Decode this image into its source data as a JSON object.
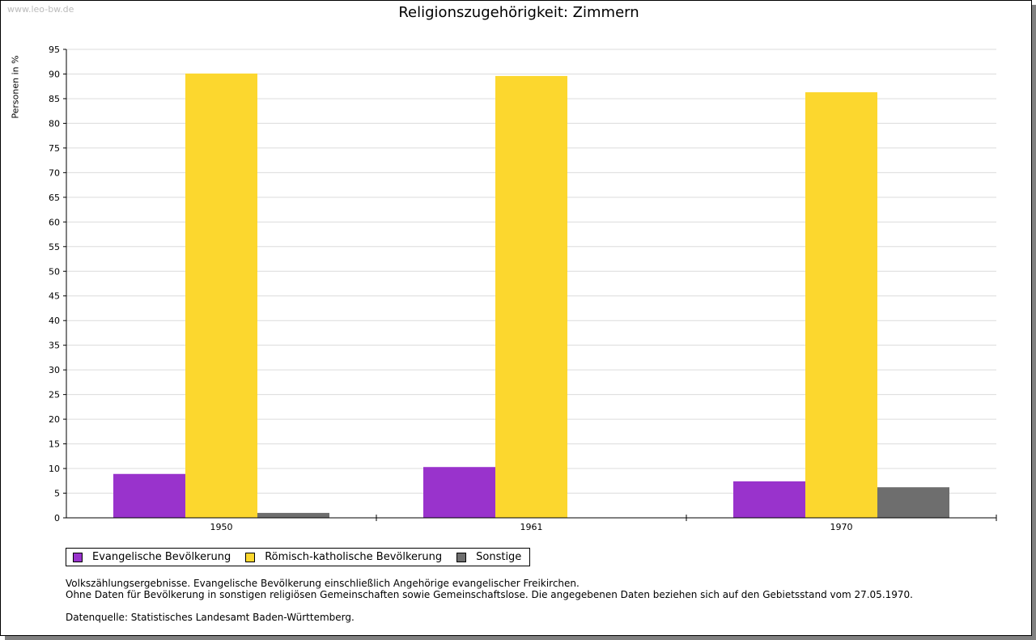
{
  "watermark": "www.leo-bw.de",
  "chart_data": {
    "type": "bar",
    "title": "Religionszugehörigkeit: Zimmern",
    "ylabel": "Personen in %",
    "xlabel": "",
    "ylim": [
      0,
      95
    ],
    "yticks": [
      0,
      5,
      10,
      15,
      20,
      25,
      30,
      35,
      40,
      45,
      50,
      55,
      60,
      65,
      70,
      75,
      80,
      85,
      90,
      95
    ],
    "grid": true,
    "categories": [
      "1950",
      "1961",
      "1970"
    ],
    "series": [
      {
        "name": "Evangelische Bevölkerung",
        "color": "#9933cc",
        "values": [
          8.9,
          10.3,
          7.4
        ]
      },
      {
        "name": "Römisch-katholische Bevölkerung",
        "color": "#fcd72e",
        "values": [
          90.1,
          89.6,
          86.3
        ]
      },
      {
        "name": "Sonstige",
        "color": "#6e6e6e",
        "values": [
          1.0,
          0,
          6.2
        ]
      }
    ],
    "legend": "bottom-left"
  },
  "notes": [
    "Volkszählungsergebnisse. Evangelische Bevölkerung einschließlich Angehörige evangelischer Freikirchen.",
    "Ohne Daten für Bevölkerung in sonstigen religiösen Gemeinschaften sowie Gemeinschaftslose. Die angegebenen Daten beziehen sich auf den Gebietsstand vom 27.05.1970.",
    "",
    "Datenquelle: Statistisches Landesamt Baden-Württemberg."
  ]
}
